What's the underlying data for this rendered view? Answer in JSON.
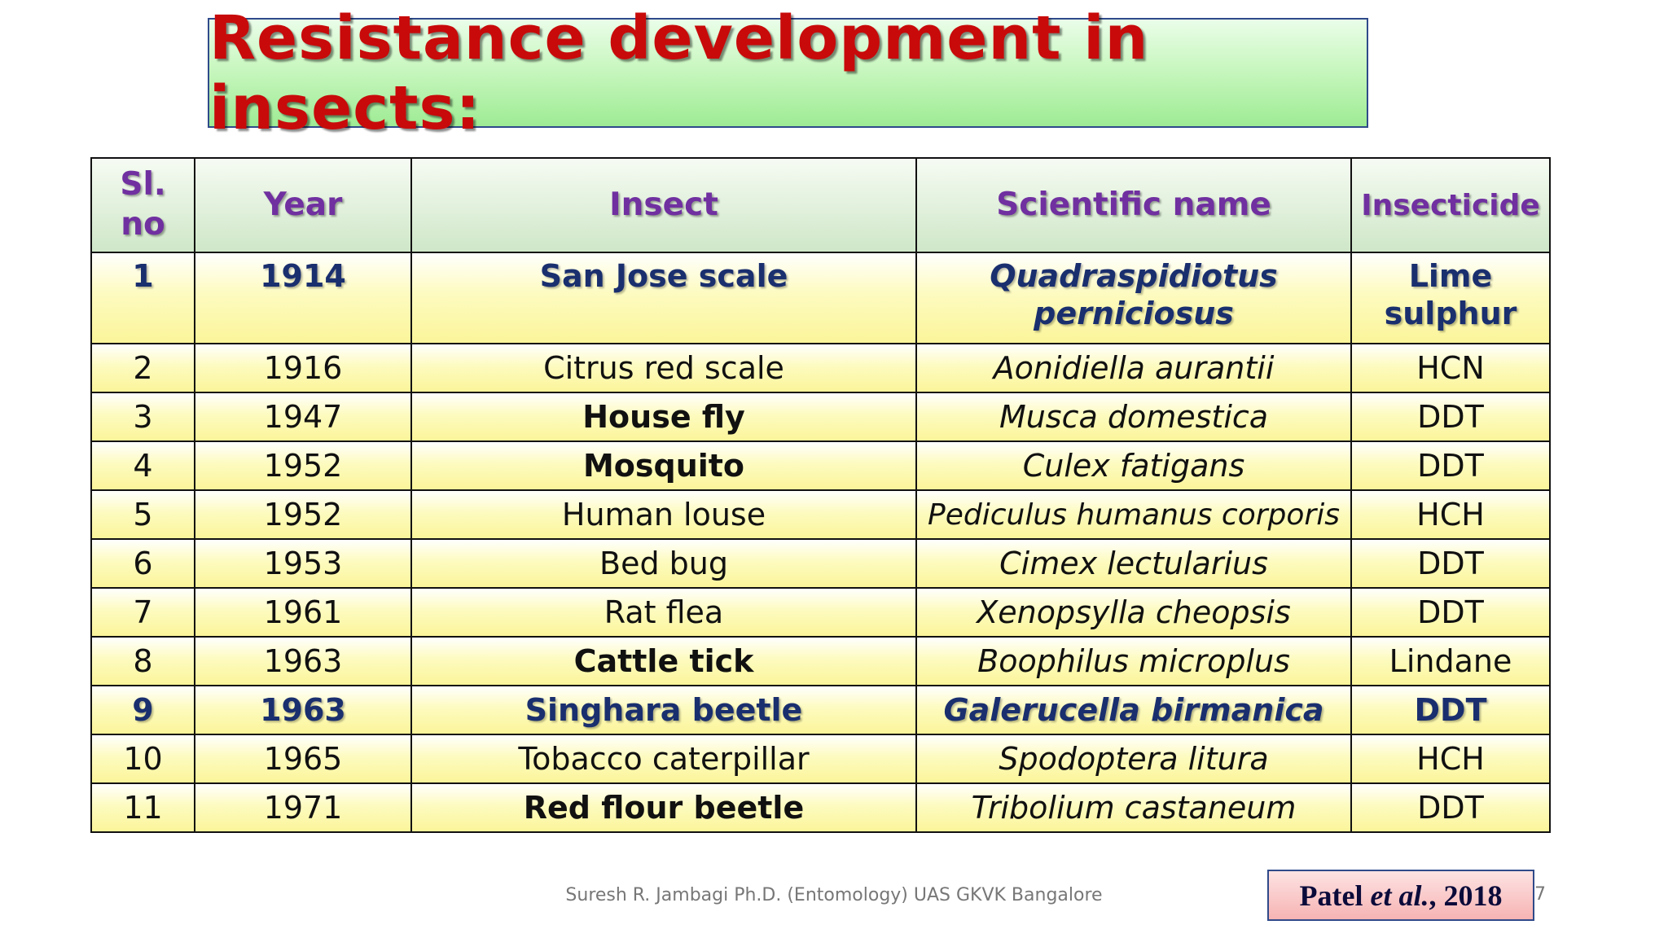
{
  "title": "Resistance development in insects:",
  "table": {
    "headers": [
      "Sl. no",
      "Year",
      "Insect",
      "Scientific name",
      "Insecticide"
    ],
    "rows": [
      [
        "1",
        "1914",
        "San Jose scale",
        "Quadraspidiotus perniciosus",
        "Lime sulphur"
      ],
      [
        "2",
        "1916",
        "Citrus red scale",
        "Aonidiella aurantii",
        "HCN"
      ],
      [
        "3",
        "1947",
        "House fly",
        "Musca domestica",
        "DDT"
      ],
      [
        "4",
        "1952",
        "Mosquito",
        "Culex fatigans",
        "DDT"
      ],
      [
        "5",
        "1952",
        "Human louse",
        "Pediculus humanus corporis",
        "HCH"
      ],
      [
        "6",
        "1953",
        "Bed bug",
        "Cimex lectularius",
        "DDT"
      ],
      [
        "7",
        "1961",
        "Rat flea",
        "Xenopsylla cheopsis",
        "DDT"
      ],
      [
        "8",
        "1963",
        "Cattle tick",
        "Boophilus microplus",
        "Lindane"
      ],
      [
        "9",
        "1963",
        "Singhara beetle",
        "Galerucella birmanica",
        "DDT"
      ],
      [
        "10",
        "1965",
        "Tobacco caterpillar",
        "Spodoptera litura",
        "HCH"
      ],
      [
        "11",
        "1971",
        "Red flour beetle",
        "Tribolium castaneum",
        "DDT"
      ]
    ]
  },
  "footer": "Suresh R. Jambagi Ph.D. (Entomology) UAS GKVK Bangalore",
  "citation": {
    "author": "Patel",
    "etal": "et al.",
    "year": ", 2018"
  },
  "page_number": "7",
  "colors": {
    "title": "#c80a0a",
    "header_text": "#7030a0",
    "highlight_text": "#1a2f6e"
  }
}
